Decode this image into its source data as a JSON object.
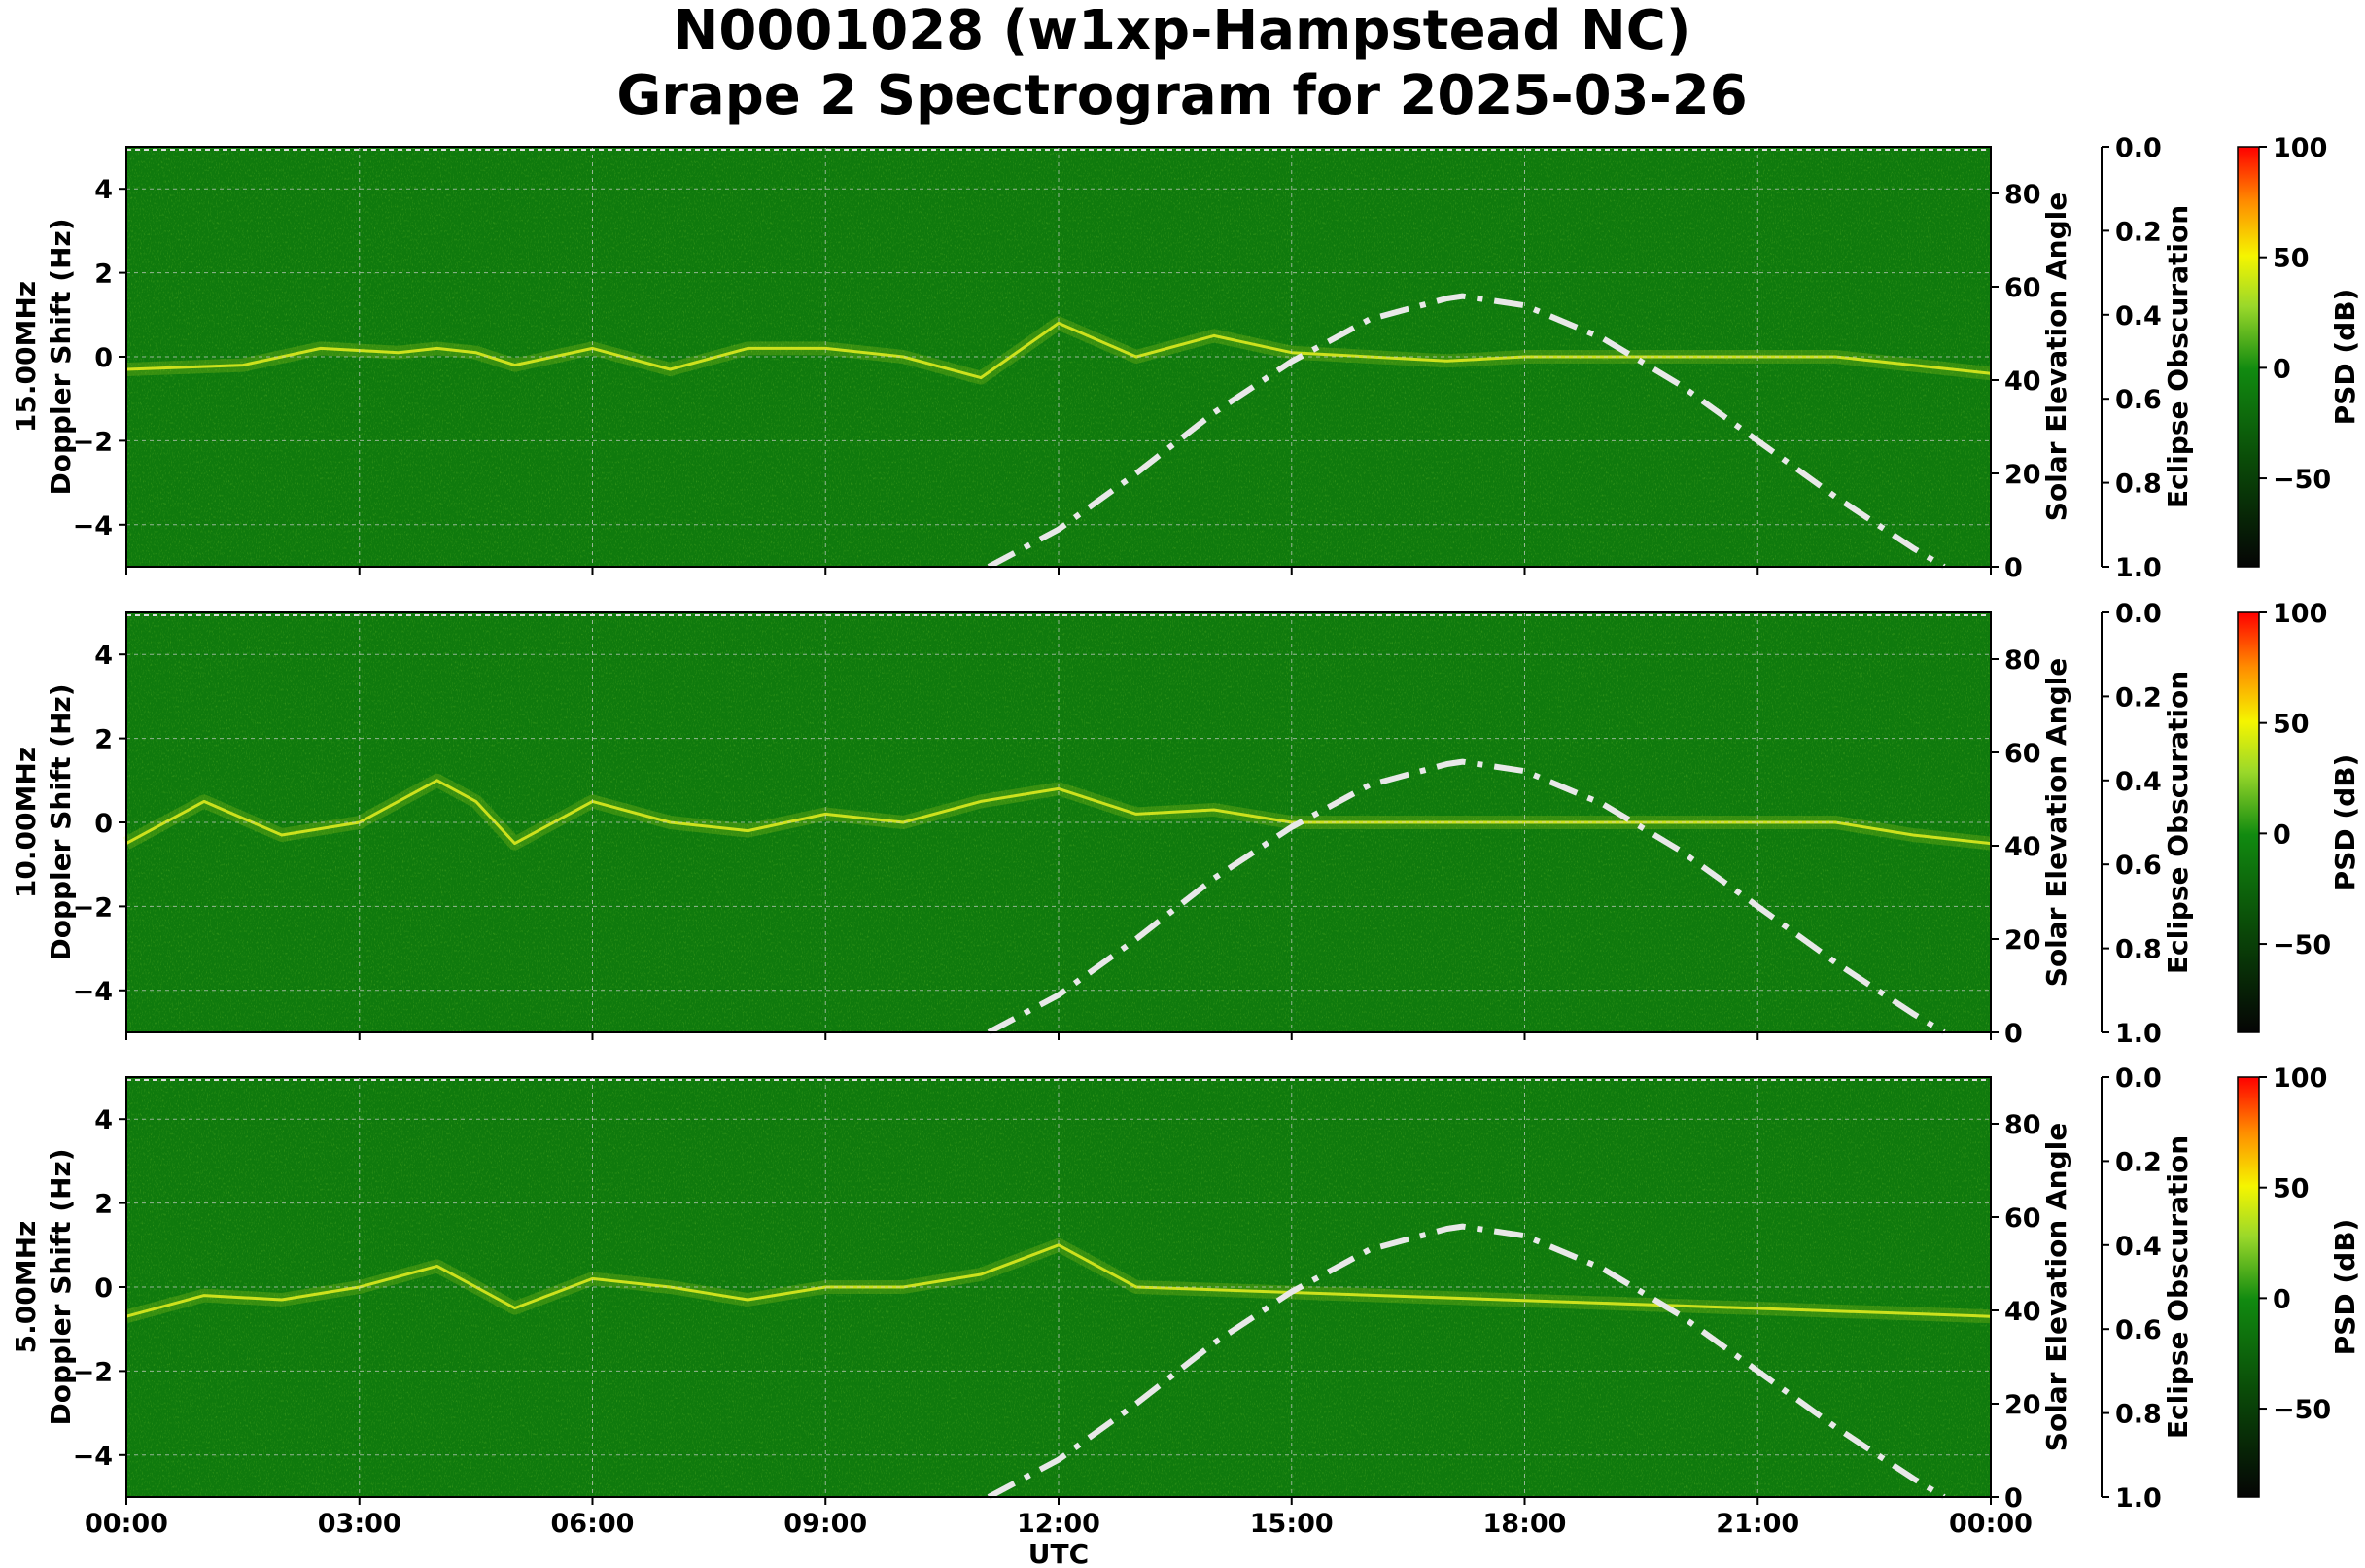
{
  "title_line1": "N0001028 (w1xp-Hampstead NC)",
  "title_line2": "Grape 2 Spectrogram for 2025-03-26",
  "chart_data": [
    {
      "type": "heatmap",
      "band": "15.00MHz",
      "ylabel": "Doppler Shift (Hz)",
      "y2label": "Solar Elevation Angle",
      "y3label": "Eclipse Obscuration",
      "cbar_label": "PSD (dB)",
      "xlabel": "",
      "background_psd_db": -20,
      "signal_trace_hz": [
        [
          0,
          -0.3
        ],
        [
          1.5,
          -0.2
        ],
        [
          2.5,
          0.2
        ],
        [
          3.5,
          0.1
        ],
        [
          4,
          0.2
        ],
        [
          4.5,
          0.1
        ],
        [
          5,
          -0.2
        ],
        [
          6,
          0.2
        ],
        [
          7,
          -0.3
        ],
        [
          8,
          0.2
        ],
        [
          9,
          0.2
        ],
        [
          10,
          0.0
        ],
        [
          11,
          -0.5
        ],
        [
          12,
          0.8
        ],
        [
          13,
          0.0
        ],
        [
          14,
          0.5
        ],
        [
          15,
          0.1
        ],
        [
          16,
          0.0
        ],
        [
          17,
          -0.1
        ],
        [
          18,
          0.0
        ],
        [
          19,
          0.0
        ],
        [
          20,
          0.0
        ],
        [
          21,
          0.0
        ],
        [
          22,
          0.0
        ],
        [
          23,
          -0.2
        ],
        [
          24,
          -0.4
        ]
      ]
    },
    {
      "type": "heatmap",
      "band": "10.00MHz",
      "ylabel": "Doppler Shift (Hz)",
      "y2label": "Solar Elevation Angle",
      "y3label": "Eclipse Obscuration",
      "cbar_label": "PSD (dB)",
      "xlabel": "",
      "background_psd_db": -10,
      "signal_trace_hz": [
        [
          0,
          -0.5
        ],
        [
          1,
          0.5
        ],
        [
          2,
          -0.3
        ],
        [
          3,
          0.0
        ],
        [
          4,
          1.0
        ],
        [
          4.5,
          0.5
        ],
        [
          5,
          -0.5
        ],
        [
          6,
          0.5
        ],
        [
          7,
          0.0
        ],
        [
          8,
          -0.2
        ],
        [
          9,
          0.2
        ],
        [
          10,
          0.0
        ],
        [
          11,
          0.5
        ],
        [
          12,
          0.8
        ],
        [
          13,
          0.2
        ],
        [
          14,
          0.3
        ],
        [
          15,
          0.0
        ],
        [
          16,
          0.0
        ],
        [
          17,
          0.0
        ],
        [
          18,
          0.0
        ],
        [
          19,
          0.0
        ],
        [
          20,
          0.0
        ],
        [
          21,
          0.0
        ],
        [
          22,
          0.0
        ],
        [
          23,
          -0.3
        ],
        [
          24,
          -0.5
        ]
      ]
    },
    {
      "type": "heatmap",
      "band": "5.00MHz",
      "ylabel": "Doppler Shift (Hz)",
      "y2label": "Solar Elevation Angle",
      "y3label": "Eclipse Obscuration",
      "cbar_label": "PSD (dB)",
      "xlabel": "UTC",
      "background_psd_db": -20,
      "signal_trace_hz": [
        [
          0,
          -0.7
        ],
        [
          1,
          -0.2
        ],
        [
          2,
          -0.3
        ],
        [
          3,
          0.0
        ],
        [
          4,
          0.5
        ],
        [
          5,
          -0.5
        ],
        [
          6,
          0.2
        ],
        [
          7,
          0.0
        ],
        [
          8,
          -0.3
        ],
        [
          9,
          0.0
        ],
        [
          10,
          0.0
        ],
        [
          11,
          0.3
        ],
        [
          12,
          1.0
        ],
        [
          12.5,
          0.5
        ],
        [
          13,
          0.0
        ],
        [
          24,
          -0.7
        ]
      ]
    }
  ],
  "shared": {
    "x_ticks": [
      "00:00",
      "03:00",
      "06:00",
      "09:00",
      "12:00",
      "15:00",
      "18:00",
      "21:00",
      "00:00"
    ],
    "x_range_hours": [
      0,
      24
    ],
    "y_range_hz": [
      -5,
      5
    ],
    "y_ticks": [
      "4",
      "2",
      "0",
      "−2",
      "−4"
    ],
    "y_tick_values": [
      4,
      2,
      0,
      -2,
      -4
    ],
    "y2_range_deg": [
      0,
      90
    ],
    "y2_ticks": [
      "80",
      "60",
      "40",
      "20",
      "0"
    ],
    "y2_tick_values": [
      80,
      60,
      40,
      20,
      0
    ],
    "y3_range": [
      1.0,
      0.0
    ],
    "y3_ticks": [
      "0.0",
      "0.2",
      "0.4",
      "0.6",
      "0.8",
      "1.0"
    ],
    "cbar_range_db": [
      -90,
      100
    ],
    "cbar_ticks": [
      "100",
      "50",
      "0",
      "−50"
    ],
    "cbar_tick_values": [
      100,
      50,
      0,
      -50
    ],
    "grid": true,
    "solar_elevation_deg": [
      [
        11.1,
        0
      ],
      [
        12,
        8
      ],
      [
        13,
        20
      ],
      [
        14,
        33
      ],
      [
        15,
        44
      ],
      [
        16,
        53
      ],
      [
        17,
        57.5
      ],
      [
        17.2,
        58
      ],
      [
        18,
        56
      ],
      [
        19,
        49
      ],
      [
        20,
        39
      ],
      [
        21,
        27
      ],
      [
        22,
        15
      ],
      [
        23,
        4
      ],
      [
        23.4,
        0
      ]
    ],
    "colors": {
      "background_green": "#0f7a0d",
      "signal_yellow": "#e8f020",
      "solar_curve": "#e8e8e8",
      "cbar_stops": [
        "#050505",
        "#0a4a08",
        "#118a10",
        "#9ad82a",
        "#f5f500",
        "#ff8c00",
        "#ff0000"
      ]
    }
  }
}
